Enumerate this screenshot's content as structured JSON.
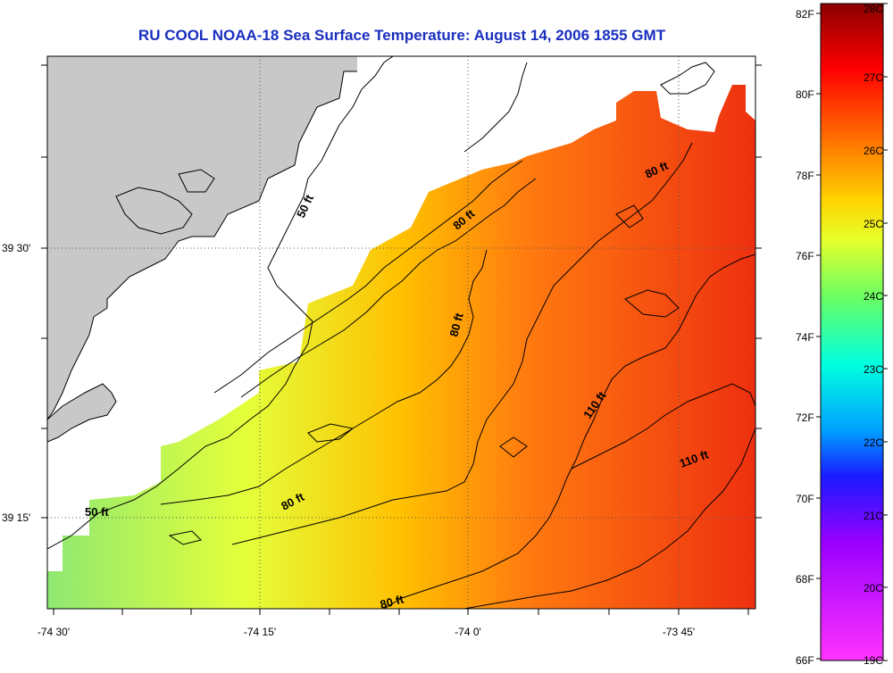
{
  "title": "RU COOL  NOAA-18  Sea Surface Temperature:  August 14, 2006 1855 GMT",
  "lat_labels": [
    "39 30'",
    "39 15'"
  ],
  "lon_labels": [
    "-74 30'",
    "-74 15'",
    "-74 0'",
    "-73 45'"
  ],
  "contour_labels": [
    "50 ft",
    "50 ft",
    "80 ft",
    "80 ft",
    "80 ft",
    "80 ft",
    "110 ft",
    "110 ft",
    "80 ft"
  ],
  "colorbar": {
    "fahrenheit_labels": [
      "82F",
      "80F",
      "78F",
      "76F",
      "74F",
      "72F",
      "70F",
      "68F",
      "66F"
    ],
    "celsius_labels": [
      "28C",
      "27C",
      "26C",
      "25C",
      "24C",
      "23C",
      "22C",
      "21C",
      "20C",
      "19C"
    ],
    "colors": [
      "#8b0000",
      "#ff0000",
      "#ff6a00",
      "#ffd400",
      "#e6ff2a",
      "#66ff66",
      "#00ffe0",
      "#00a0ff",
      "#1a1aff",
      "#9900ff",
      "#ff33ff"
    ]
  },
  "colors": {
    "title": "#1a2fbf",
    "land": "#c8c8c8",
    "cloud_mask": "#ffffff"
  }
}
